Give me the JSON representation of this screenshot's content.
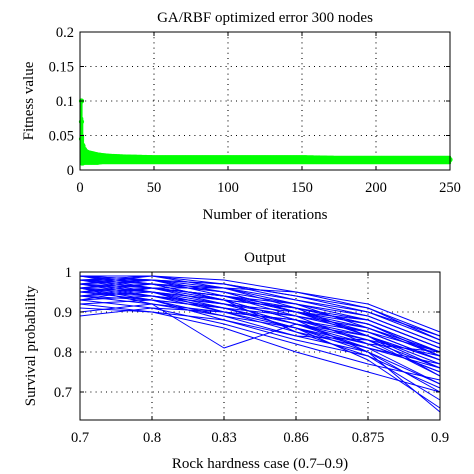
{
  "chart_data": [
    {
      "type": "scatter",
      "title": "GA/RBF optimized error 300 nodes",
      "xlabel": "Number of iterations",
      "ylabel": "Fitness value",
      "xlim": [
        0,
        250
      ],
      "ylim": [
        0,
        0.2
      ],
      "xticks": [
        0,
        50,
        100,
        150,
        200,
        250
      ],
      "yticks": [
        0,
        0.05,
        0.1,
        0.15,
        0.2
      ],
      "xtick_labels": [
        "0",
        "50",
        "100",
        "150",
        "200",
        "250"
      ],
      "ytick_labels": [
        "0",
        "0.05",
        "0.1",
        "0.15",
        "0.2"
      ],
      "grid": true,
      "marker_color": "#00ff00",
      "series": [
        {
          "x": [
            1,
            1,
            1,
            2,
            2,
            3,
            3,
            4,
            5,
            6,
            8,
            10,
            12,
            15,
            20,
            30,
            50,
            75,
            100,
            125,
            150,
            175,
            200,
            225,
            250
          ],
          "y": [
            0.1,
            0.07,
            0.045,
            0.035,
            0.02,
            0.03,
            0.015,
            0.025,
            0.02,
            0.022,
            0.02,
            0.019,
            0.018,
            0.018,
            0.017,
            0.017,
            0.016,
            0.016,
            0.016,
            0.016,
            0.015,
            0.015,
            0.015,
            0.015,
            0.015
          ],
          "y_min": [
            0.008,
            0.008,
            0.008,
            0.008,
            0.008,
            0.009,
            0.009,
            0.009,
            0.009,
            0.009,
            0.009,
            0.009,
            0.009,
            0.01,
            0.01,
            0.01,
            0.01,
            0.01,
            0.01,
            0.01,
            0.01,
            0.01,
            0.01,
            0.01,
            0.01
          ],
          "y_max": [
            0.1,
            0.1,
            0.1,
            0.05,
            0.04,
            0.035,
            0.03,
            0.03,
            0.028,
            0.027,
            0.026,
            0.025,
            0.024,
            0.023,
            0.022,
            0.021,
            0.02,
            0.02,
            0.02,
            0.02,
            0.02,
            0.019,
            0.019,
            0.019,
            0.019
          ]
        }
      ]
    },
    {
      "type": "line",
      "title": "Output",
      "xlabel": "Rock hardness case (0.7–0.9)",
      "ylabel": "Survival probability",
      "categories": [
        "0.7",
        "0.8",
        "0.83",
        "0.86",
        "0.875",
        "0.9"
      ],
      "ylim": [
        0.63,
        1.0
      ],
      "yticks": [
        0.7,
        0.8,
        0.9,
        1
      ],
      "ytick_labels": [
        "0.7",
        "0.8",
        "0.9",
        "1"
      ],
      "grid": true,
      "line_color": "#0000ff",
      "series": [
        {
          "values": [
            0.99,
            0.99,
            0.98,
            0.95,
            0.92,
            0.85
          ]
        },
        {
          "values": [
            0.99,
            0.98,
            0.97,
            0.94,
            0.9,
            0.84
          ]
        },
        {
          "values": [
            0.98,
            0.99,
            0.96,
            0.95,
            0.91,
            0.83
          ]
        },
        {
          "values": [
            0.99,
            0.97,
            0.96,
            0.93,
            0.89,
            0.82
          ]
        },
        {
          "values": [
            0.98,
            0.98,
            0.95,
            0.92,
            0.88,
            0.81
          ]
        },
        {
          "values": [
            0.97,
            0.98,
            0.96,
            0.91,
            0.87,
            0.8
          ]
        },
        {
          "values": [
            0.98,
            0.96,
            0.94,
            0.92,
            0.89,
            0.82
          ]
        },
        {
          "values": [
            0.96,
            0.97,
            0.95,
            0.9,
            0.86,
            0.79
          ]
        },
        {
          "values": [
            0.97,
            0.95,
            0.93,
            0.91,
            0.88,
            0.81
          ]
        },
        {
          "values": [
            0.95,
            0.96,
            0.94,
            0.89,
            0.85,
            0.78
          ]
        },
        {
          "values": [
            0.96,
            0.94,
            0.92,
            0.9,
            0.87,
            0.8
          ]
        },
        {
          "values": [
            0.94,
            0.95,
            0.93,
            0.88,
            0.84,
            0.77
          ]
        },
        {
          "values": [
            0.95,
            0.93,
            0.91,
            0.89,
            0.86,
            0.79
          ]
        },
        {
          "values": [
            0.93,
            0.94,
            0.92,
            0.87,
            0.83,
            0.76
          ]
        },
        {
          "values": [
            0.94,
            0.92,
            0.9,
            0.88,
            0.85,
            0.78
          ]
        },
        {
          "values": [
            0.92,
            0.93,
            0.91,
            0.86,
            0.82,
            0.75
          ]
        },
        {
          "values": [
            0.97,
            0.96,
            0.94,
            0.9,
            0.84,
            0.74
          ]
        },
        {
          "values": [
            0.96,
            0.95,
            0.92,
            0.87,
            0.81,
            0.72
          ]
        },
        {
          "values": [
            0.98,
            0.96,
            0.93,
            0.88,
            0.8,
            0.7
          ]
        },
        {
          "values": [
            0.95,
            0.94,
            0.9,
            0.85,
            0.79,
            0.68
          ]
        },
        {
          "values": [
            0.97,
            0.95,
            0.91,
            0.86,
            0.78,
            0.66
          ]
        },
        {
          "values": [
            0.94,
            0.93,
            0.89,
            0.84,
            0.8,
            0.65
          ]
        },
        {
          "values": [
            0.96,
            0.93,
            0.88,
            0.83,
            0.79,
            0.71
          ]
        },
        {
          "values": [
            0.9,
            0.92,
            0.81,
            0.87,
            0.82,
            0.8
          ]
        },
        {
          "values": [
            0.91,
            0.9,
            0.88,
            0.84,
            0.83,
            0.79
          ]
        },
        {
          "values": [
            0.89,
            0.91,
            0.9,
            0.86,
            0.81,
            0.77
          ]
        },
        {
          "values": [
            0.93,
            0.91,
            0.87,
            0.82,
            0.77,
            0.73
          ]
        },
        {
          "values": [
            0.92,
            0.9,
            0.86,
            0.8,
            0.75,
            0.7
          ]
        },
        {
          "values": [
            0.99,
            0.97,
            0.93,
            0.85,
            0.81,
            0.76
          ]
        },
        {
          "values": [
            0.98,
            0.97,
            0.95,
            0.9,
            0.85,
            0.8
          ]
        },
        {
          "values": [
            0.97,
            0.99,
            0.97,
            0.93,
            0.9,
            0.83
          ]
        },
        {
          "values": [
            0.96,
            0.98,
            0.97,
            0.94,
            0.91,
            0.84
          ]
        },
        {
          "values": [
            0.99,
            0.96,
            0.92,
            0.89,
            0.82,
            0.75
          ]
        },
        {
          "values": [
            0.95,
            0.97,
            0.93,
            0.91,
            0.84,
            0.78
          ]
        },
        {
          "values": [
            0.93,
            0.96,
            0.96,
            0.92,
            0.86,
            0.8
          ]
        },
        {
          "values": [
            0.97,
            0.94,
            0.91,
            0.87,
            0.84,
            0.76
          ]
        },
        {
          "values": [
            0.98,
            0.95,
            0.9,
            0.88,
            0.83,
            0.74
          ]
        },
        {
          "values": [
            0.94,
            0.96,
            0.94,
            0.9,
            0.88,
            0.81
          ]
        },
        {
          "values": [
            0.96,
            0.92,
            0.89,
            0.86,
            0.8,
            0.72
          ]
        },
        {
          "values": [
            0.99,
            0.98,
            0.94,
            0.91,
            0.87,
            0.79
          ]
        }
      ]
    }
  ]
}
